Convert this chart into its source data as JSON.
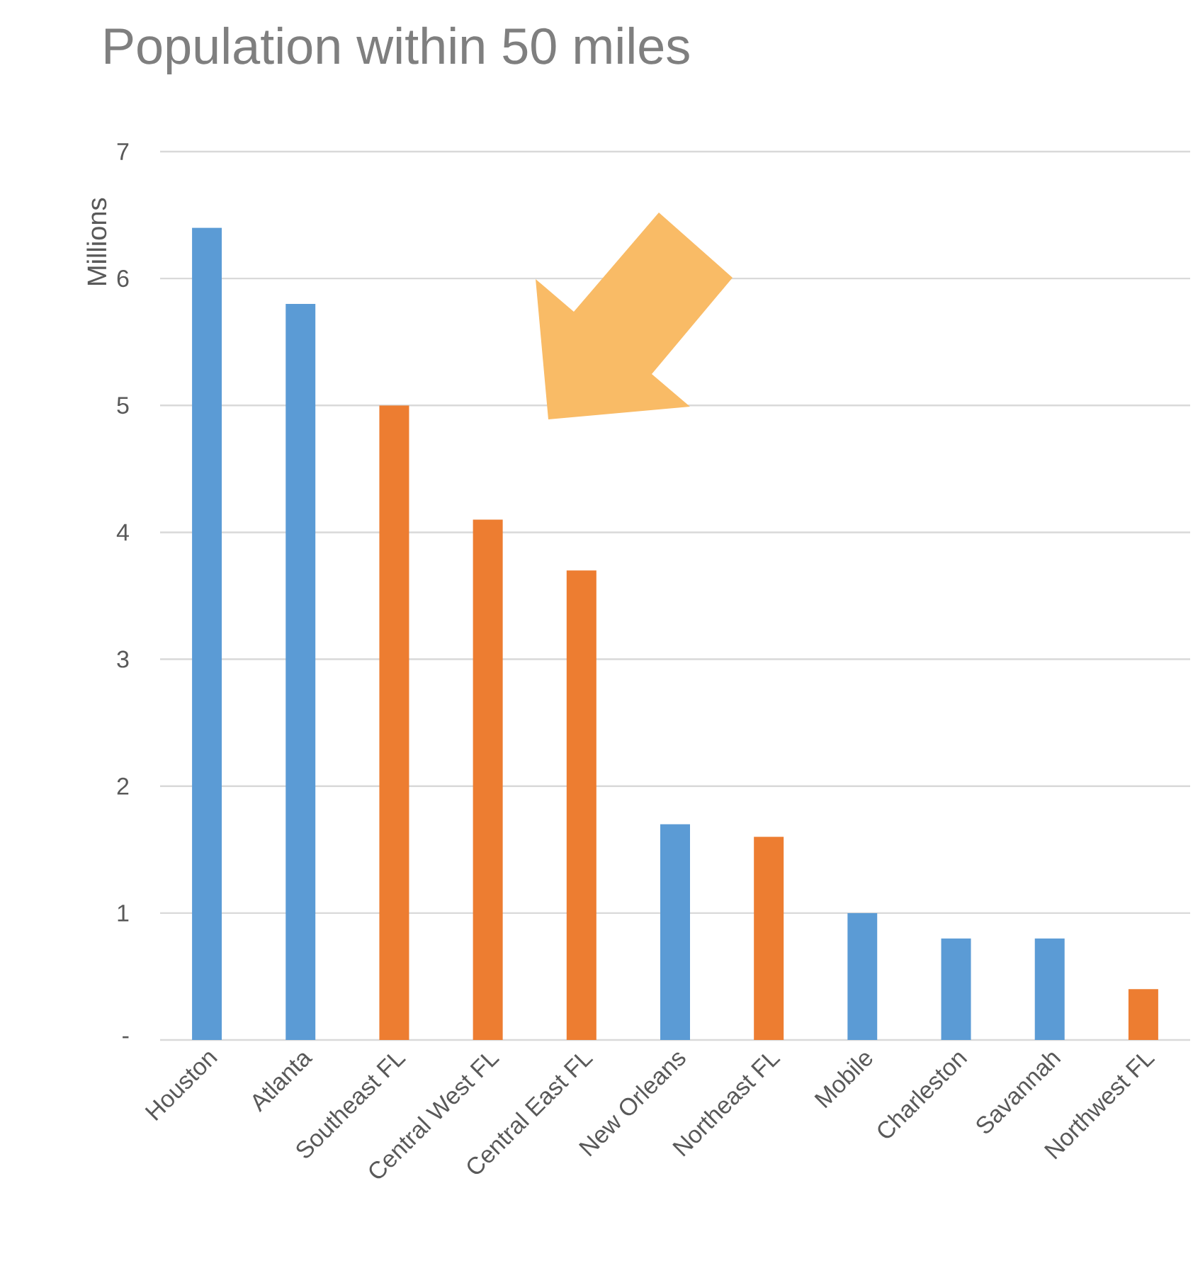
{
  "chart_data": {
    "type": "bar",
    "title": "Population within 50 miles",
    "ylabel": "Millions",
    "categories": [
      "Houston",
      "Atlanta",
      "Southeast FL",
      "Central West FL",
      "Central East FL",
      "New Orleans",
      "Northeast FL",
      "Mobile",
      "Charleston",
      "Savannah",
      "Northwest FL"
    ],
    "values": [
      6.4,
      5.8,
      5.0,
      4.1,
      3.7,
      1.7,
      1.6,
      1.0,
      0.8,
      0.8,
      0.4
    ],
    "colors": [
      "#5b9bd5",
      "#5b9bd5",
      "#ed7d31",
      "#ed7d31",
      "#ed7d31",
      "#5b9bd5",
      "#ed7d31",
      "#5b9bd5",
      "#5b9bd5",
      "#5b9bd5",
      "#ed7d31"
    ],
    "ylim": [
      0,
      7
    ],
    "yticks": [
      {
        "value": 0,
        "label": "-"
      },
      1,
      2,
      3,
      4,
      5,
      6,
      7
    ],
    "grid": "y"
  }
}
